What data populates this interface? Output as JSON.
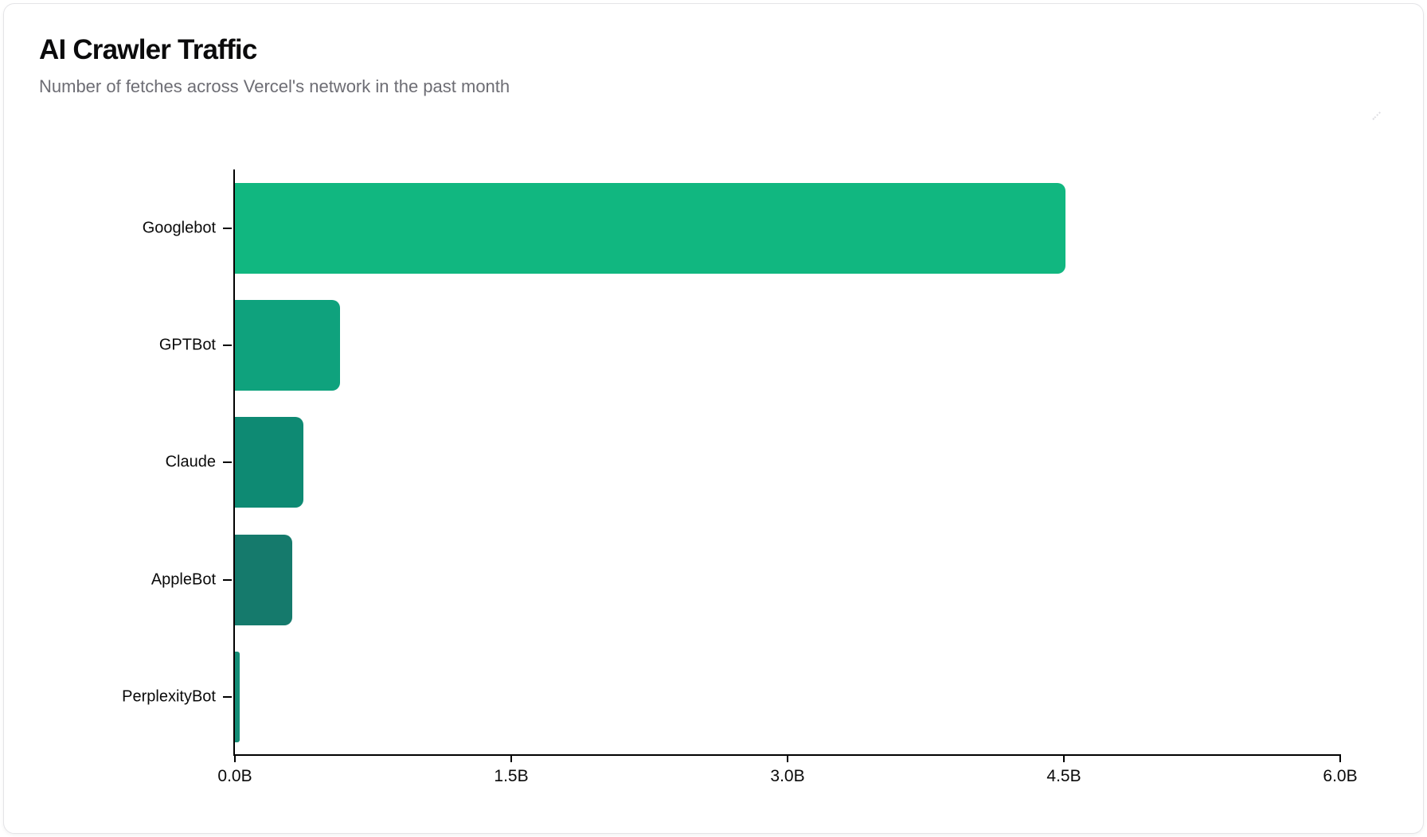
{
  "card": {
    "title": "AI Crawler Traffic",
    "subtitle": "Number of fetches across Vercel's network in the past month",
    "background": "#ffffff",
    "border_color": "#e4e4e7"
  },
  "icons": {
    "resize_handle": "diagonal-dotted-resize-handle"
  },
  "chart_data": {
    "type": "bar",
    "orientation": "horizontal",
    "title": "AI Crawler Traffic",
    "subtitle": "Number of fetches across Vercel's network in the past month",
    "categories": [
      "Googlebot",
      "GPTBot",
      "Claude",
      "AppleBot",
      "PerplexityBot"
    ],
    "values": [
      4.5,
      0.57,
      0.37,
      0.31,
      0.025
    ],
    "value_unit": "billions of fetches",
    "xlabel": "",
    "ylabel": "",
    "xlim": [
      0,
      6
    ],
    "x_ticks": [
      0,
      1.5,
      3,
      4.5,
      6
    ],
    "x_tick_labels": [
      "0.0B",
      "1.5B",
      "3.0B",
      "4.5B",
      "6.0B"
    ],
    "grid": false,
    "legend": false,
    "bar_colors": [
      "#11b780",
      "#0fa27d",
      "#0e8a73",
      "#157a6c",
      "#148d76"
    ],
    "bar_patterns": [
      "solid",
      "solid",
      "solid",
      "dotted",
      "dotted"
    ],
    "axis_color": "#000000",
    "tick_label_color": "#0a0a0a"
  }
}
